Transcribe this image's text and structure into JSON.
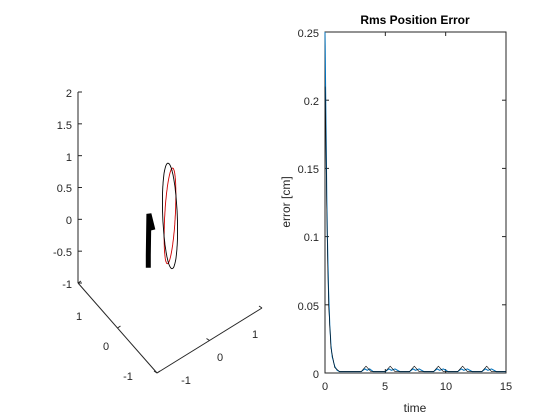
{
  "chart_data": [
    {
      "type": "line3d",
      "title": "",
      "xlabel": "",
      "ylabel": "",
      "zlabel": "",
      "xlim": [
        -1,
        1
      ],
      "ylim": [
        -1,
        1
      ],
      "zlim": [
        -1,
        2
      ],
      "x_ticks": [
        "-1",
        "0",
        "1"
      ],
      "y_ticks": [
        "-1",
        "0",
        "1"
      ],
      "z_ticks": [
        "-1",
        "-0.5",
        "0",
        "0.5",
        "1",
        "1.5",
        "2"
      ],
      "series": [
        {
          "style": "desired-trajectory",
          "color": "#cc0000",
          "center": [
            0,
            0,
            0.25
          ],
          "radius": 0.5
        },
        {
          "style": "actual-trajectory",
          "color": "#000000",
          "center": [
            0,
            0,
            0.25
          ],
          "radius": 0.5
        },
        {
          "style": "robot-arm",
          "color": "#000000",
          "points": [
            [
              -0.05,
              -0.45,
              -0.3
            ],
            [
              -0.05,
              -0.45,
              -0.1
            ],
            [
              0.4,
              -0.1,
              0.05
            ],
            [
              0.5,
              0.05,
              -0.35
            ]
          ]
        }
      ],
      "grid": false
    },
    {
      "type": "line",
      "title": "Rms Position Error",
      "xlabel": "time",
      "ylabel": "error [cm]",
      "xlim": [
        0,
        15
      ],
      "ylim": [
        0,
        0.25
      ],
      "x_ticks": [
        "0",
        "5",
        "10",
        "15"
      ],
      "y_ticks": [
        "0",
        "0.05",
        "0.1",
        "0.15",
        "0.2",
        "0.25"
      ],
      "grid": false,
      "series": [
        {
          "color": "#0072bd",
          "x": [
            0,
            0.02,
            0.05,
            0.1,
            0.15,
            0.2,
            0.3,
            0.4,
            0.5,
            0.6,
            0.8,
            1.0,
            1.2,
            1.5,
            2.0,
            2.5,
            3.0,
            3.3,
            3.5,
            3.7,
            4.0,
            4.5,
            5.0,
            5.3,
            5.5,
            5.8,
            6.2,
            7.0,
            7.3,
            7.5,
            7.8,
            8.2,
            9.0,
            9.3,
            9.5,
            9.8,
            10.2,
            11.0,
            11.3,
            11.5,
            11.8,
            12.2,
            13.0,
            13.3,
            13.5,
            13.8,
            14.2,
            15.0
          ],
          "values": [
            0.25,
            0.24,
            0.21,
            0.17,
            0.13,
            0.1,
            0.06,
            0.035,
            0.02,
            0.012,
            0.005,
            0.002,
            0.001,
            0.001,
            0.001,
            0.001,
            0.001,
            0.003,
            0.002,
            0.003,
            0.001,
            0.001,
            0.001,
            0.003,
            0.002,
            0.003,
            0.001,
            0.001,
            0.003,
            0.002,
            0.003,
            0.001,
            0.001,
            0.003,
            0.002,
            0.003,
            0.001,
            0.001,
            0.003,
            0.002,
            0.003,
            0.001,
            0.001,
            0.003,
            0.002,
            0.003,
            0.001,
            0.001
          ]
        },
        {
          "color": "#000000",
          "x": [
            0,
            0.05,
            0.1,
            0.2,
            0.3,
            0.5,
            0.8,
            1.2,
            2.0,
            3.0,
            3.4,
            3.8,
            4.4,
            5.0,
            5.4,
            5.8,
            6.4,
            7.0,
            7.4,
            7.8,
            8.4,
            9.0,
            9.4,
            9.8,
            10.4,
            11.0,
            11.4,
            11.8,
            12.4,
            13.0,
            13.4,
            13.8,
            14.4,
            15.0
          ],
          "values": [
            0.21,
            0.19,
            0.15,
            0.09,
            0.05,
            0.018,
            0.004,
            0.001,
            0.001,
            0.001,
            0.005,
            0.001,
            0.001,
            0.001,
            0.005,
            0.001,
            0.001,
            0.001,
            0.005,
            0.001,
            0.001,
            0.001,
            0.005,
            0.001,
            0.001,
            0.001,
            0.005,
            0.001,
            0.001,
            0.001,
            0.005,
            0.001,
            0.001,
            0.001
          ]
        }
      ]
    }
  ]
}
